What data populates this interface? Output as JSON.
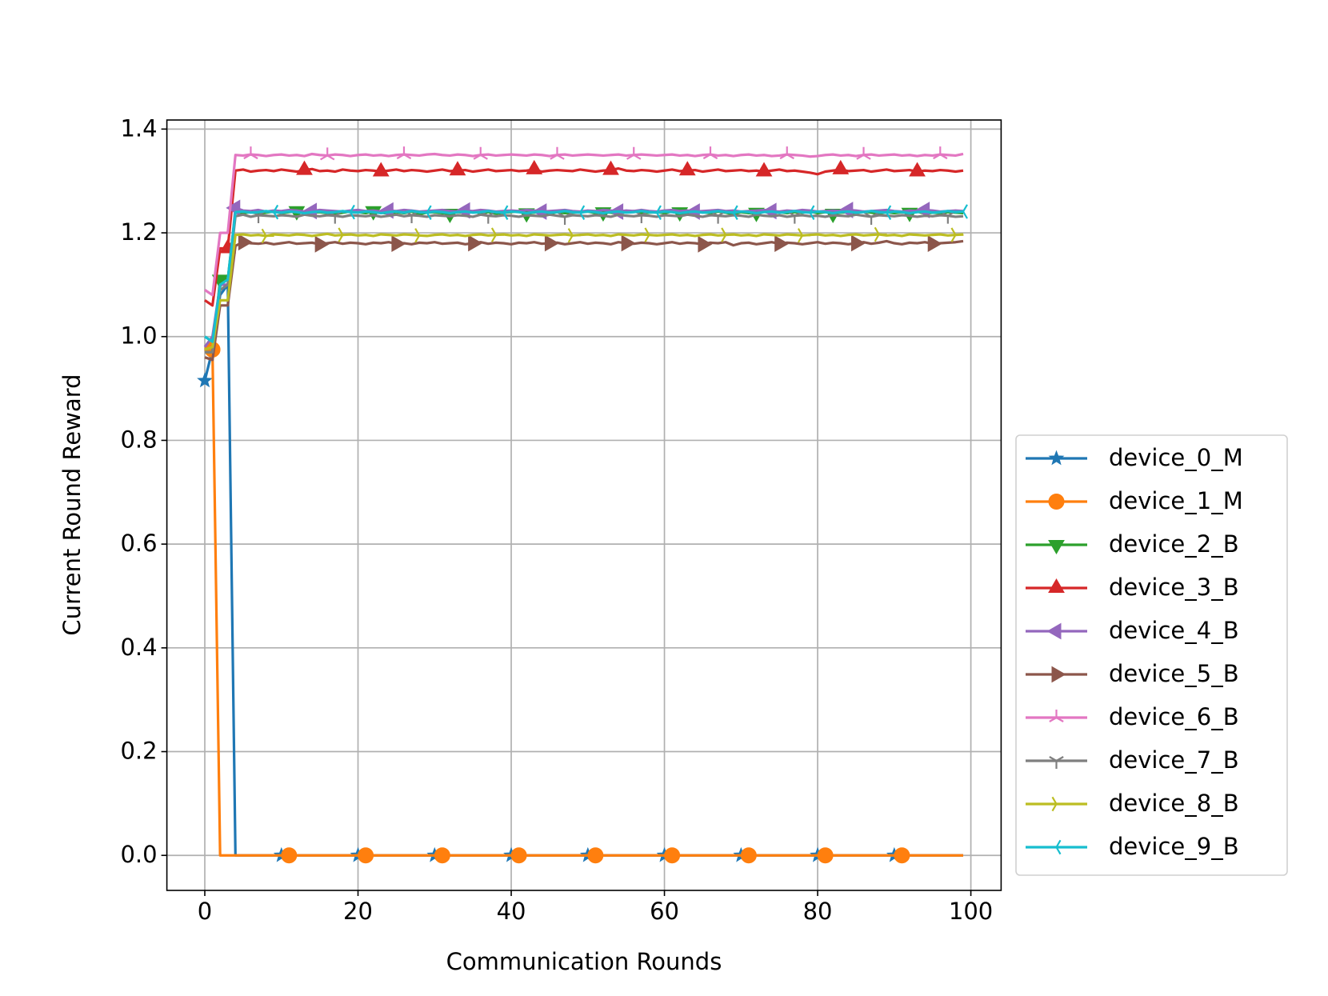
{
  "chart_data": {
    "type": "line",
    "xlabel": "Communication Rounds",
    "ylabel": "Current Round Reward",
    "xlim": [
      -4.95,
      103.95
    ],
    "ylim": [
      -0.0675,
      1.4175
    ],
    "xticks": [
      0,
      20,
      40,
      60,
      80,
      100
    ],
    "yticks": [
      {
        "value": 0,
        "label": "0.0"
      },
      0.2,
      0.4,
      0.6,
      0.8,
      {
        "value": 1,
        "label": "1.0"
      },
      1.2,
      1.4
    ],
    "grid": true,
    "legend": "lower right",
    "markevery": 10,
    "x": [
      0,
      1,
      2,
      3,
      4,
      5,
      6,
      7,
      8,
      9,
      10,
      11,
      12,
      13,
      14,
      15,
      16,
      17,
      18,
      19,
      20,
      21,
      22,
      23,
      24,
      25,
      26,
      27,
      28,
      29,
      30,
      31,
      32,
      33,
      34,
      35,
      36,
      37,
      38,
      39,
      40,
      41,
      42,
      43,
      44,
      45,
      46,
      47,
      48,
      49,
      50,
      51,
      52,
      53,
      54,
      55,
      56,
      57,
      58,
      59,
      60,
      61,
      62,
      63,
      64,
      65,
      66,
      67,
      68,
      69,
      70,
      71,
      72,
      73,
      74,
      75,
      76,
      77,
      78,
      79,
      80,
      81,
      82,
      83,
      84,
      85,
      86,
      87,
      88,
      89,
      90,
      91,
      92,
      93,
      94,
      95,
      96,
      97,
      98,
      99
    ],
    "series": [
      {
        "name": "device_0_M",
        "color": "#1f77b4",
        "marker": "star",
        "values": [
          0.915,
          0.975,
          1.08,
          1.1,
          0,
          0,
          0,
          0,
          0,
          0,
          0,
          0,
          0,
          0,
          0,
          0,
          0,
          0,
          0,
          0,
          0,
          0,
          0,
          0,
          0,
          0,
          0,
          0,
          0,
          0,
          0,
          0,
          0,
          0,
          0,
          0,
          0,
          0,
          0,
          0,
          0,
          0,
          0,
          0,
          0,
          0,
          0,
          0,
          0,
          0,
          0,
          0,
          0,
          0,
          0,
          0,
          0,
          0,
          0,
          0,
          0,
          0,
          0,
          0,
          0,
          0,
          0,
          0,
          0,
          0,
          0,
          0,
          0,
          0,
          0,
          0,
          0,
          0,
          0,
          0,
          0,
          0,
          0,
          0,
          0,
          0,
          0,
          0,
          0,
          0,
          0,
          0,
          0,
          0,
          0,
          0,
          0,
          0,
          0,
          0
        ]
      },
      {
        "name": "device_1_M",
        "color": "#ff7f0e",
        "marker": "circle",
        "values": [
          0.98,
          0.975,
          0,
          0,
          0,
          0,
          0,
          0,
          0,
          0,
          0,
          0,
          0,
          0,
          0,
          0,
          0,
          0,
          0,
          0,
          0,
          0,
          0,
          0,
          0,
          0,
          0,
          0,
          0,
          0,
          0,
          0,
          0,
          0,
          0,
          0,
          0,
          0,
          0,
          0,
          0,
          0,
          0,
          0,
          0,
          0,
          0,
          0,
          0,
          0,
          0,
          0,
          0,
          0,
          0,
          0,
          0,
          0,
          0,
          0,
          0,
          0,
          0,
          0,
          0,
          0,
          0,
          0,
          0,
          0,
          0,
          0,
          0,
          0,
          0,
          0,
          0,
          0,
          0,
          0,
          0,
          0,
          0,
          0,
          0,
          0,
          0,
          0,
          0,
          0,
          0,
          0,
          0,
          0,
          0,
          0,
          0,
          0,
          0,
          0
        ]
      },
      {
        "name": "device_2_B",
        "color": "#2ca02c",
        "marker": "triangle_down",
        "values": [
          0.97,
          0.97,
          1.11,
          1.11,
          1.24,
          1.238,
          1.24,
          1.237,
          1.239,
          1.241,
          1.238,
          1.24,
          1.242,
          1.237,
          1.239,
          1.24,
          1.238,
          1.236,
          1.239,
          1.241,
          1.24,
          1.238,
          1.242,
          1.239,
          1.237,
          1.24,
          1.238,
          1.241,
          1.236,
          1.239,
          1.24,
          1.238,
          1.237,
          1.24,
          1.239,
          1.241,
          1.238,
          1.24,
          1.237,
          1.239,
          1.24,
          1.242,
          1.238,
          1.239,
          1.241,
          1.237,
          1.24,
          1.238,
          1.239,
          1.24,
          1.241,
          1.238,
          1.24,
          1.239,
          1.237,
          1.24,
          1.242,
          1.238,
          1.239,
          1.24,
          1.238,
          1.241,
          1.24,
          1.237,
          1.239,
          1.24,
          1.238,
          1.241,
          1.239,
          1.236,
          1.24,
          1.238,
          1.239,
          1.241,
          1.237,
          1.24,
          1.238,
          1.24,
          1.239,
          1.241,
          1.238,
          1.24,
          1.237,
          1.239,
          1.24,
          1.238,
          1.241,
          1.239,
          1.237,
          1.24,
          1.238,
          1.24,
          1.239,
          1.241,
          1.237,
          1.239,
          1.238,
          1.24,
          1.239,
          1.238
        ]
      },
      {
        "name": "device_3_B",
        "color": "#d62728",
        "marker": "triangle_up",
        "values": [
          1.07,
          1.06,
          1.17,
          1.17,
          1.32,
          1.322,
          1.318,
          1.32,
          1.321,
          1.319,
          1.322,
          1.32,
          1.318,
          1.321,
          1.323,
          1.319,
          1.32,
          1.318,
          1.322,
          1.32,
          1.319,
          1.321,
          1.32,
          1.318,
          1.32,
          1.322,
          1.319,
          1.321,
          1.32,
          1.318,
          1.32,
          1.322,
          1.319,
          1.32,
          1.321,
          1.318,
          1.32,
          1.322,
          1.319,
          1.32,
          1.321,
          1.319,
          1.32,
          1.322,
          1.318,
          1.32,
          1.321,
          1.32,
          1.319,
          1.322,
          1.32,
          1.318,
          1.32,
          1.321,
          1.324,
          1.32,
          1.319,
          1.321,
          1.32,
          1.318,
          1.32,
          1.322,
          1.319,
          1.32,
          1.321,
          1.318,
          1.32,
          1.322,
          1.319,
          1.32,
          1.321,
          1.319,
          1.32,
          1.318,
          1.32,
          1.322,
          1.319,
          1.32,
          1.318,
          1.316,
          1.313,
          1.318,
          1.32,
          1.322,
          1.319,
          1.32,
          1.321,
          1.318,
          1.32,
          1.322,
          1.319,
          1.32,
          1.321,
          1.318,
          1.32,
          1.319,
          1.321,
          1.32,
          1.318,
          1.32
        ]
      },
      {
        "name": "device_4_B",
        "color": "#9467bd",
        "marker": "triangle_left",
        "values": [
          0.98,
          1.0,
          1.1,
          1.1,
          1.248,
          1.243,
          1.242,
          1.244,
          1.241,
          1.243,
          1.242,
          1.244,
          1.243,
          1.241,
          1.242,
          1.244,
          1.243,
          1.242,
          1.241,
          1.243,
          1.244,
          1.242,
          1.243,
          1.241,
          1.243,
          1.242,
          1.244,
          1.243,
          1.241,
          1.242,
          1.243,
          1.244,
          1.242,
          1.241,
          1.243,
          1.242,
          1.244,
          1.243,
          1.241,
          1.242,
          1.243,
          1.242,
          1.244,
          1.243,
          1.241,
          1.242,
          1.243,
          1.244,
          1.242,
          1.241,
          1.243,
          1.242,
          1.244,
          1.243,
          1.241,
          1.243,
          1.242,
          1.244,
          1.242,
          1.241,
          1.243,
          1.244,
          1.242,
          1.243,
          1.241,
          1.242,
          1.243,
          1.244,
          1.242,
          1.243,
          1.241,
          1.242,
          1.243,
          1.244,
          1.242,
          1.241,
          1.243,
          1.242,
          1.244,
          1.243,
          1.241,
          1.242,
          1.243,
          1.242,
          1.244,
          1.243,
          1.241,
          1.242,
          1.243,
          1.244,
          1.242,
          1.241,
          1.243,
          1.242,
          1.244,
          1.243,
          1.241,
          1.242,
          1.243,
          1.242
        ]
      },
      {
        "name": "device_5_B",
        "color": "#8c564b",
        "marker": "triangle_right",
        "values": [
          0.96,
          0.955,
          1.06,
          1.06,
          1.175,
          1.182,
          1.18,
          1.179,
          1.181,
          1.178,
          1.18,
          1.182,
          1.179,
          1.18,
          1.181,
          1.178,
          1.18,
          1.182,
          1.179,
          1.181,
          1.18,
          1.178,
          1.181,
          1.18,
          1.182,
          1.179,
          1.18,
          1.178,
          1.181,
          1.18,
          1.182,
          1.179,
          1.18,
          1.181,
          1.178,
          1.18,
          1.182,
          1.179,
          1.181,
          1.18,
          1.178,
          1.181,
          1.18,
          1.182,
          1.179,
          1.18,
          1.181,
          1.178,
          1.18,
          1.182,
          1.179,
          1.181,
          1.18,
          1.178,
          1.182,
          1.18,
          1.179,
          1.181,
          1.18,
          1.178,
          1.18,
          1.182,
          1.179,
          1.181,
          1.18,
          1.178,
          1.181,
          1.18,
          1.182,
          1.176,
          1.18,
          1.181,
          1.178,
          1.18,
          1.182,
          1.179,
          1.181,
          1.18,
          1.178,
          1.18,
          1.182,
          1.179,
          1.181,
          1.18,
          1.178,
          1.18,
          1.182,
          1.179,
          1.181,
          1.184,
          1.18,
          1.178,
          1.181,
          1.18,
          1.182,
          1.179,
          1.18,
          1.181,
          1.182,
          1.184
        ]
      },
      {
        "name": "device_6_B",
        "color": "#e377c2",
        "marker": "tri_down",
        "values": [
          1.09,
          1.08,
          1.2,
          1.2,
          1.35,
          1.349,
          1.351,
          1.35,
          1.348,
          1.35,
          1.351,
          1.349,
          1.35,
          1.348,
          1.352,
          1.35,
          1.349,
          1.351,
          1.35,
          1.348,
          1.35,
          1.351,
          1.349,
          1.35,
          1.348,
          1.35,
          1.351,
          1.35,
          1.349,
          1.351,
          1.352,
          1.35,
          1.349,
          1.351,
          1.35,
          1.348,
          1.35,
          1.351,
          1.349,
          1.35,
          1.351,
          1.35,
          1.349,
          1.351,
          1.35,
          1.348,
          1.35,
          1.351,
          1.349,
          1.35,
          1.351,
          1.35,
          1.349,
          1.35,
          1.351,
          1.349,
          1.35,
          1.351,
          1.35,
          1.349,
          1.35,
          1.351,
          1.349,
          1.35,
          1.348,
          1.35,
          1.351,
          1.349,
          1.35,
          1.348,
          1.35,
          1.351,
          1.349,
          1.35,
          1.348,
          1.349,
          1.351,
          1.35,
          1.349,
          1.347,
          1.348,
          1.35,
          1.351,
          1.349,
          1.35,
          1.348,
          1.35,
          1.351,
          1.349,
          1.35,
          1.351,
          1.349,
          1.35,
          1.348,
          1.35,
          1.349,
          1.351,
          1.35,
          1.349,
          1.352
        ]
      },
      {
        "name": "device_7_B",
        "color": "#7f7f7f",
        "marker": "tri_up",
        "values": [
          0.97,
          0.97,
          1.09,
          1.1,
          1.232,
          1.235,
          1.231,
          1.234,
          1.233,
          1.232,
          1.234,
          1.233,
          1.231,
          1.235,
          1.233,
          1.232,
          1.234,
          1.233,
          1.231,
          1.234,
          1.233,
          1.232,
          1.234,
          1.231,
          1.233,
          1.235,
          1.232,
          1.234,
          1.233,
          1.231,
          1.234,
          1.233,
          1.232,
          1.234,
          1.233,
          1.231,
          1.235,
          1.233,
          1.232,
          1.234,
          1.233,
          1.231,
          1.234,
          1.233,
          1.232,
          1.235,
          1.233,
          1.231,
          1.234,
          1.233,
          1.232,
          1.234,
          1.233,
          1.231,
          1.235,
          1.233,
          1.232,
          1.234,
          1.233,
          1.231,
          1.234,
          1.233,
          1.232,
          1.235,
          1.233,
          1.231,
          1.234,
          1.233,
          1.232,
          1.234,
          1.233,
          1.231,
          1.235,
          1.233,
          1.232,
          1.234,
          1.231,
          1.233,
          1.234,
          1.232,
          1.233,
          1.231,
          1.234,
          1.233,
          1.232,
          1.235,
          1.233,
          1.231,
          1.234,
          1.233,
          1.232,
          1.234,
          1.233,
          1.231,
          1.233,
          1.232,
          1.234,
          1.233,
          1.231,
          1.232
        ]
      },
      {
        "name": "device_8_B",
        "color": "#bcbd22",
        "marker": "tri_left",
        "values": [
          0.975,
          0.98,
          1.07,
          1.07,
          1.196,
          1.197,
          1.195,
          1.196,
          1.194,
          1.197,
          1.196,
          1.195,
          1.197,
          1.196,
          1.194,
          1.196,
          1.198,
          1.195,
          1.196,
          1.197,
          1.195,
          1.196,
          1.194,
          1.197,
          1.196,
          1.195,
          1.197,
          1.196,
          1.195,
          1.194,
          1.196,
          1.197,
          1.195,
          1.196,
          1.194,
          1.196,
          1.197,
          1.195,
          1.196,
          1.197,
          1.195,
          1.196,
          1.194,
          1.197,
          1.196,
          1.195,
          1.196,
          1.197,
          1.195,
          1.196,
          1.197,
          1.195,
          1.196,
          1.194,
          1.197,
          1.196,
          1.195,
          1.197,
          1.196,
          1.195,
          1.196,
          1.197,
          1.195,
          1.196,
          1.194,
          1.196,
          1.197,
          1.195,
          1.196,
          1.197,
          1.195,
          1.196,
          1.194,
          1.197,
          1.196,
          1.195,
          1.197,
          1.196,
          1.195,
          1.196,
          1.197,
          1.195,
          1.196,
          1.194,
          1.196,
          1.197,
          1.195,
          1.196,
          1.197,
          1.195,
          1.196,
          1.194,
          1.197,
          1.196,
          1.195,
          1.196,
          1.197,
          1.195,
          1.196,
          1.197
        ]
      },
      {
        "name": "device_9_B",
        "color": "#17becf",
        "marker": "tri_right",
        "values": [
          1.0,
          0.99,
          1.1,
          1.11,
          1.24,
          1.241,
          1.239,
          1.24,
          1.242,
          1.24,
          1.239,
          1.241,
          1.24,
          1.238,
          1.24,
          1.241,
          1.239,
          1.24,
          1.242,
          1.24,
          1.239,
          1.241,
          1.24,
          1.238,
          1.24,
          1.241,
          1.239,
          1.242,
          1.24,
          1.239,
          1.241,
          1.24,
          1.238,
          1.24,
          1.241,
          1.239,
          1.24,
          1.242,
          1.24,
          1.239,
          1.241,
          1.24,
          1.238,
          1.24,
          1.241,
          1.239,
          1.24,
          1.242,
          1.24,
          1.239,
          1.241,
          1.24,
          1.238,
          1.24,
          1.241,
          1.239,
          1.24,
          1.242,
          1.24,
          1.239,
          1.241,
          1.24,
          1.238,
          1.24,
          1.241,
          1.239,
          1.24,
          1.242,
          1.24,
          1.239,
          1.241,
          1.24,
          1.238,
          1.24,
          1.241,
          1.239,
          1.24,
          1.242,
          1.24,
          1.239,
          1.241,
          1.24,
          1.238,
          1.24,
          1.241,
          1.239,
          1.24,
          1.242,
          1.24,
          1.239,
          1.241,
          1.24,
          1.238,
          1.24,
          1.241,
          1.239,
          1.24,
          1.242,
          1.24,
          1.241
        ]
      }
    ]
  }
}
